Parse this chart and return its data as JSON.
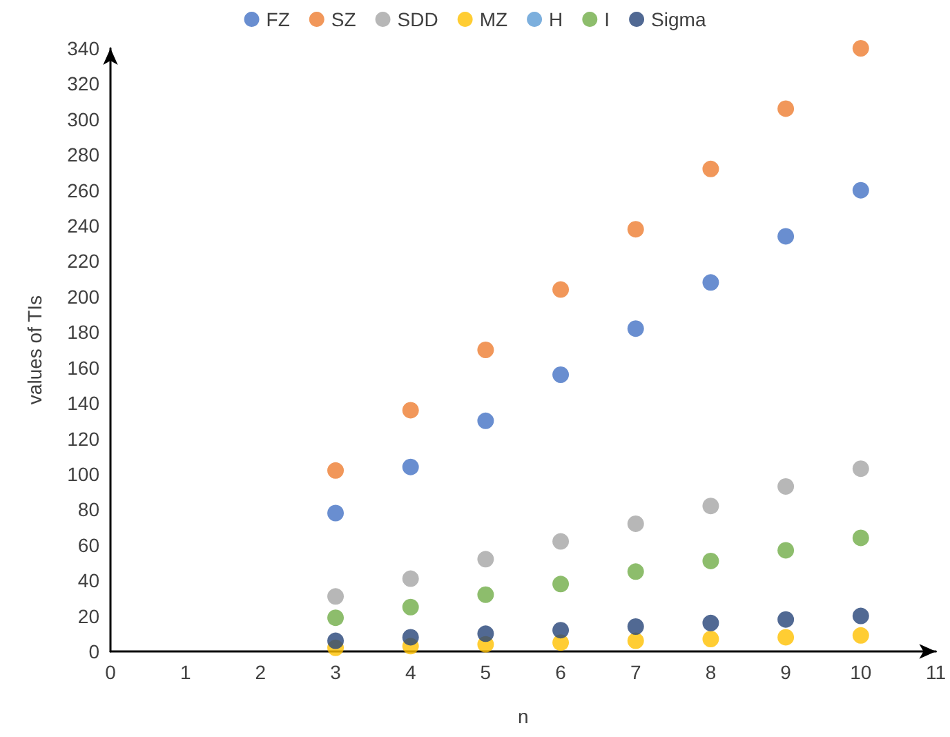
{
  "chart_data": {
    "type": "scatter",
    "xlabel": "n",
    "ylabel": "values of TIs",
    "x": [
      3,
      4,
      5,
      6,
      7,
      8,
      9,
      10
    ],
    "xlim": [
      0,
      11
    ],
    "xticks": [
      0,
      1,
      2,
      3,
      4,
      5,
      6,
      7,
      8,
      9,
      10,
      11
    ],
    "ylim": [
      0,
      340
    ],
    "yticks": [
      0,
      20,
      40,
      60,
      80,
      100,
      120,
      140,
      160,
      180,
      200,
      220,
      240,
      260,
      280,
      300,
      320,
      340
    ],
    "grid": false,
    "legend": "top",
    "marker": "circle",
    "series": [
      {
        "name": "FZ",
        "color": "#4472c4",
        "values": [
          78,
          104,
          130,
          156,
          182,
          208,
          234,
          260
        ]
      },
      {
        "name": "SZ",
        "color": "#ed7d31",
        "values": [
          102,
          136,
          170,
          204,
          238,
          272,
          306,
          340
        ]
      },
      {
        "name": "SDD",
        "color": "#a5a5a5",
        "values": [
          31,
          41,
          52,
          62,
          72,
          82,
          93,
          103
        ]
      },
      {
        "name": "MZ",
        "color": "#ffc000",
        "values": [
          2,
          3,
          4,
          5,
          6,
          7,
          8,
          9
        ]
      },
      {
        "name": "H",
        "color": "#5b9bd5",
        "values": [
          null,
          null,
          null,
          null,
          null,
          null,
          null,
          null
        ]
      },
      {
        "name": "I",
        "color": "#70ad47",
        "values": [
          19,
          25,
          32,
          38,
          45,
          51,
          57,
          64
        ]
      },
      {
        "name": "Sigma",
        "color": "#264478",
        "values": [
          6,
          8,
          10,
          12,
          14,
          16,
          18,
          20
        ]
      }
    ]
  }
}
